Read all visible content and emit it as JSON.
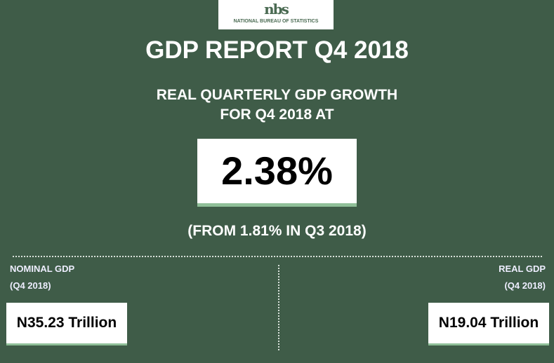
{
  "logo": {
    "mark": "nbs",
    "text": "NATIONAL BUREAU OF STATISTICS"
  },
  "title": "GDP REPORT Q4 2018",
  "subtitle": {
    "line1": "REAL QUARTERLY GDP GROWTH",
    "line2": "FOR Q4 2018 AT"
  },
  "growth": "2.38%",
  "from": "(FROM 1.81% IN Q3 2018)",
  "nominal": {
    "label": "NOMINAL GDP",
    "period": "(Q4 2018)",
    "value": "N35.23 Trillion"
  },
  "real": {
    "label": "REAL GDP",
    "period": "(Q4 2018)",
    "value": "N19.04 Trillion"
  }
}
